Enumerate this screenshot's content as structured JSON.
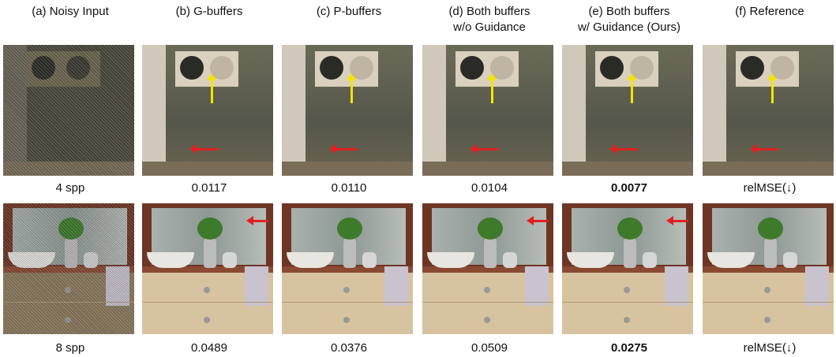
{
  "columns": [
    {
      "lines": [
        "(a) Noisy Input"
      ]
    },
    {
      "lines": [
        "(b) G-buffers"
      ]
    },
    {
      "lines": [
        "(c) P-buffers"
      ]
    },
    {
      "lines": [
        "(d) Both buffers",
        "w/o Guidance"
      ]
    },
    {
      "lines": [
        "(e) Both buffers",
        "w/ Guidance (Ours)"
      ]
    },
    {
      "lines": [
        "(f) Reference"
      ]
    }
  ],
  "rows": [
    {
      "labels": [
        "4 spp",
        "0.0117",
        "0.0110",
        "0.0104",
        "0.0077",
        "relMSE(↓)"
      ]
    },
    {
      "labels": [
        "8 spp",
        "0.0489",
        "0.0376",
        "0.0509",
        "0.0275",
        "relMSE(↓)"
      ]
    }
  ]
}
